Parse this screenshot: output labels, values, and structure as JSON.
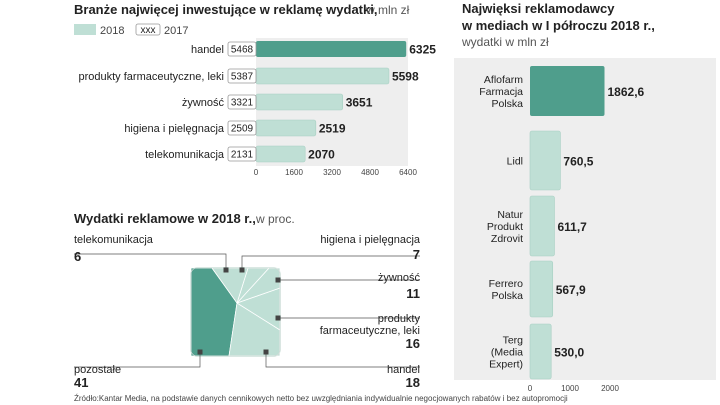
{
  "colors": {
    "dark": "#4f9e8c",
    "light": "#bfdfd5",
    "panel": "#eeeeee",
    "lightStroke": "#a8cfc3"
  },
  "source": "Źródło:Kantar Media, na podstawie danych cennikowych netto bez uwzględniania indywidualnie negocjowanych rabatów i bez autopromocji",
  "chart_data": [
    {
      "type": "bar",
      "orientation": "horizontal",
      "title": "Branże najwięcej inwestujące w reklamę wydatki,",
      "subtitle": "w mln zł",
      "legend": {
        "series2018": "2018",
        "series2017": "2017",
        "sample": "xxx"
      },
      "categories": [
        "handel",
        "produkty farmaceutyczne, leki",
        "żywność",
        "higiena i pielęgnacja",
        "telekomunikacja"
      ],
      "series": [
        {
          "name": "2018",
          "values": [
            6325,
            5598,
            3651,
            2519,
            2070
          ]
        },
        {
          "name": "2017",
          "values": [
            5468,
            5387,
            3321,
            2509,
            2131
          ]
        }
      ],
      "xlim": [
        0,
        6400
      ],
      "ticks": [
        "0",
        "1600",
        "3200",
        "4800",
        "6400"
      ],
      "highlight_index": 0
    },
    {
      "type": "pie",
      "title": "Wydatki reklamowe w 2018 r.,",
      "subtitle": "w proc.",
      "slices": [
        {
          "label": "pozostałe",
          "value": "41"
        },
        {
          "label": "handel",
          "value": "18"
        },
        {
          "label": "produkty farmaceutyczne, leki",
          "value": "16"
        },
        {
          "label": "żywność",
          "value": "11"
        },
        {
          "label": "higiena i pielęgnacja",
          "value": "7"
        },
        {
          "label": "telekomunikacja",
          "value": "6"
        }
      ]
    },
    {
      "type": "bar",
      "orientation": "vertical-list",
      "title_line1": "Najwięksi reklamodawcy",
      "title_line2": "w mediach w I półroczu 2018 r.,",
      "subtitle": "wydatki w mln zł",
      "categories": [
        [
          "Aflofarm",
          "Farmacja",
          "Polska"
        ],
        [
          "Lidl"
        ],
        [
          "Natur",
          "Produkt",
          "Zdrovit"
        ],
        [
          "Ferrero",
          "Polska"
        ],
        [
          "Terg",
          "(Media",
          "Expert)"
        ]
      ],
      "values": [
        1862.6,
        760.5,
        611.7,
        567.9,
        530.0
      ],
      "value_labels": [
        "1862,6",
        "760,5",
        "611,7",
        "567,9",
        "530,0"
      ],
      "xlim": [
        0,
        2000
      ],
      "ticks": [
        "0",
        "1000",
        "2000"
      ],
      "highlight_index": 0
    }
  ]
}
